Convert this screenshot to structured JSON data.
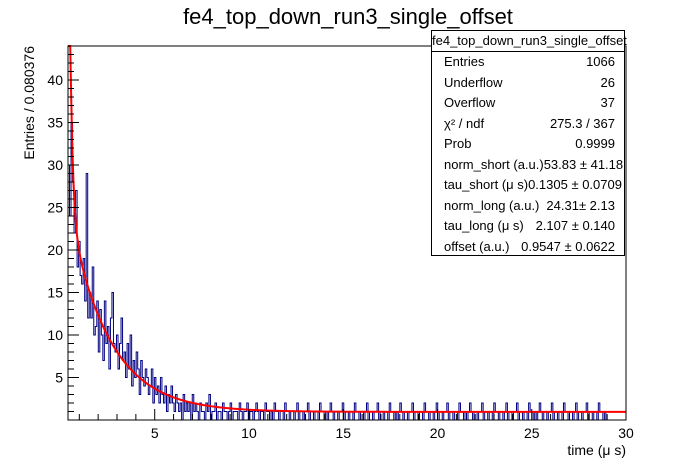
{
  "title": "fe4_top_down_run3_single_offset",
  "stats": {
    "name": "fe4_top_down_run3_single_offset",
    "rows": [
      {
        "label": "Entries",
        "value": "1066"
      },
      {
        "label": "Underflow",
        "value": "26"
      },
      {
        "label": "Overflow",
        "value": "37"
      },
      {
        "label": "χ² / ndf",
        "value": "275.3 / 367"
      },
      {
        "label": "Prob",
        "value": "0.9999"
      },
      {
        "label": "norm_short (a.u.)",
        "value": "53.83 ± 41.18"
      },
      {
        "label": "tau_short (μ s)",
        "value": "0.1305 ± 0.0709"
      },
      {
        "label": "norm_long (a.u.)",
        "value": "24.31± 2.13"
      },
      {
        "label": "tau_long (μ s)",
        "value": "2.107 ± 0.140"
      },
      {
        "label": "offset (a.u.)",
        "value": "0.9547 ± 0.0622"
      }
    ]
  },
  "chart_data": {
    "type": "histogram",
    "title": "fe4_top_down_run3_single_offset",
    "xlabel": "time (μ s)",
    "ylabel": "Entries / 0.080376",
    "xlim": [
      0.4,
      30
    ],
    "ylim": [
      0,
      44
    ],
    "xticks": [
      5,
      10,
      15,
      20,
      25,
      30
    ],
    "yticks": [
      5,
      10,
      15,
      20,
      25,
      30,
      35,
      40
    ],
    "bin_width": 0.080376,
    "histogram_color": "#000080",
    "fit_color": "#ff0000",
    "fit_function": {
      "norm_short": 53.83,
      "tau_short": 0.1305,
      "norm_long": 24.31,
      "tau_long": 2.107,
      "offset": 0.9547,
      "x0": 0.4
    },
    "bin_counts": [
      30,
      24,
      35,
      28,
      22,
      27,
      18,
      21,
      17,
      16,
      19,
      14,
      29,
      12,
      15,
      12,
      18,
      10,
      11,
      14,
      8,
      13,
      10,
      7,
      14,
      9,
      11,
      6,
      12,
      15,
      9,
      8,
      10,
      6,
      9,
      12,
      7,
      8,
      5,
      9,
      6,
      10,
      4,
      7,
      5,
      8,
      6,
      3,
      7,
      5,
      4,
      6,
      5,
      3,
      4,
      6,
      2,
      5,
      3,
      4,
      2,
      5,
      3,
      2,
      4,
      1,
      3,
      2,
      4,
      2,
      1,
      3,
      2,
      1,
      2,
      0,
      3,
      1,
      2,
      1,
      2,
      0,
      3,
      1,
      2,
      1,
      0,
      2,
      1,
      1,
      0,
      2,
      1,
      3,
      0,
      1,
      1,
      2,
      0,
      1,
      1,
      0,
      2,
      1,
      1,
      0,
      1,
      2,
      0,
      1,
      1,
      1,
      0,
      2,
      1,
      0,
      1,
      1,
      2,
      0,
      1,
      1,
      0,
      1,
      2,
      1,
      0,
      1,
      1,
      0,
      2,
      1,
      1,
      0,
      1,
      0,
      2,
      1,
      1,
      0,
      1,
      1,
      0,
      2,
      1,
      1,
      0,
      1,
      1,
      0,
      1,
      2,
      0,
      1,
      1,
      0,
      1,
      1,
      2,
      0,
      1,
      1,
      0,
      1,
      1,
      0,
      2,
      1,
      1,
      0,
      1,
      0,
      1,
      2,
      1,
      0,
      1,
      1,
      0,
      1,
      1,
      2,
      0,
      1,
      1,
      0,
      1,
      1,
      0,
      2,
      1,
      1,
      0,
      1,
      1,
      0,
      1,
      2,
      0,
      1,
      1,
      0,
      1,
      1,
      2,
      0,
      1,
      1,
      0,
      1,
      1,
      0,
      2,
      1,
      1,
      0,
      1,
      0,
      1,
      2,
      1,
      0,
      1,
      1,
      0,
      1,
      1,
      2,
      0,
      1,
      1,
      0,
      1,
      1,
      0,
      2,
      1,
      1,
      0,
      1,
      1,
      0,
      1,
      2,
      0,
      1,
      1,
      0,
      1,
      1,
      2,
      0,
      1,
      1,
      0,
      1,
      1,
      0,
      2,
      1,
      1,
      0,
      1,
      0,
      1,
      2,
      1,
      0,
      1,
      1,
      0,
      1,
      1,
      2,
      0,
      1,
      1,
      0,
      1,
      1,
      0,
      2,
      1,
      1,
      0,
      1,
      1,
      0,
      1,
      2,
      0,
      1,
      1,
      0,
      1,
      1,
      2,
      0,
      1,
      1,
      0,
      1,
      1,
      0,
      2,
      1,
      1,
      0,
      1,
      0,
      1,
      2,
      1,
      0,
      1,
      1,
      0,
      1,
      1,
      2,
      0,
      1,
      1,
      0,
      1,
      1,
      0,
      2,
      1,
      1,
      0,
      1,
      1,
      0,
      1,
      2,
      0,
      1,
      1,
      0,
      1,
      1,
      2,
      0,
      1,
      1,
      0,
      1,
      1,
      0,
      2,
      1,
      1,
      0,
      1
    ]
  }
}
